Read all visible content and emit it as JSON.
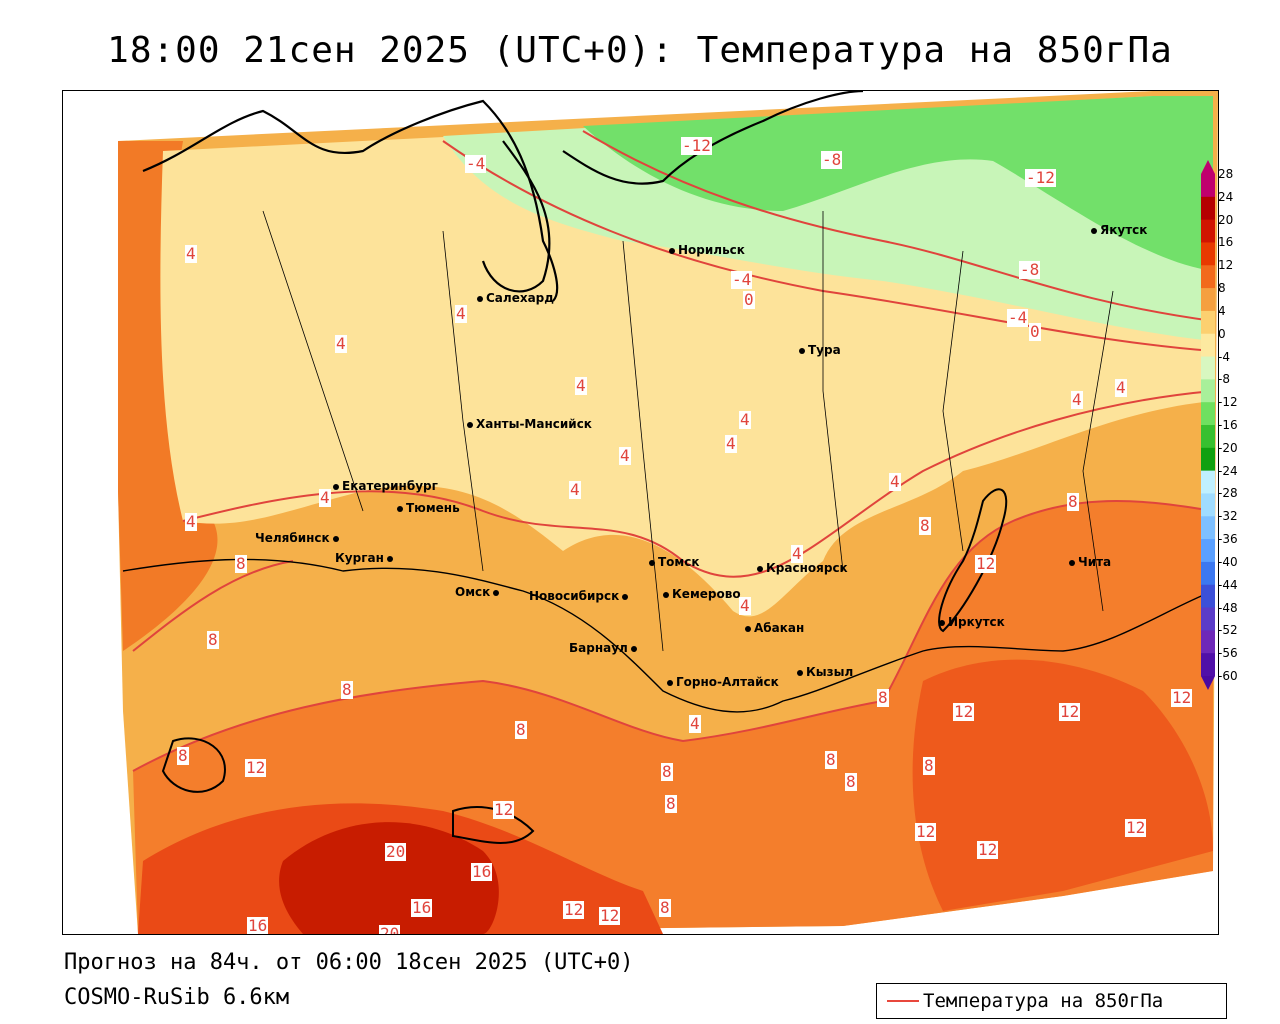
{
  "title": "18:00 21сен 2025 (UTC+0): Температура на 850гПа",
  "footer": {
    "forecast": "Прогноз на 84ч. от 06:00 18сен 2025 (UTC+0)",
    "model": "COSMO-RuSib 6.6км"
  },
  "legend": {
    "label": "Температура на 850гПа",
    "line_color": "#e8473c"
  },
  "color_scale": {
    "labels": [
      "28",
      "24",
      "20",
      "16",
      "12",
      "8",
      "4",
      "0",
      "-4",
      "-8",
      "-12",
      "-16",
      "-20",
      "-24",
      "-28",
      "-32",
      "-36",
      "-40",
      "-44",
      "-48",
      "-52",
      "-56",
      "-60"
    ],
    "colors": [
      "#c0006e",
      "#b50000",
      "#d01500",
      "#e83a00",
      "#f26a1c",
      "#f5a040",
      "#fcd070",
      "#fde9a0",
      "#d8f7c0",
      "#a8f09a",
      "#6fe060",
      "#38c030",
      "#10a010",
      "#c0f0ff",
      "#a0dcff",
      "#7ec0ff",
      "#5aa0ff",
      "#3c78f0",
      "#3c50d8",
      "#5a3cc8",
      "#6e28b8",
      "#5010a8",
      "#4a0aa0"
    ]
  },
  "cities": [
    {
      "name": "Норильск"
    },
    {
      "name": "Якутск"
    },
    {
      "name": "Салехард"
    },
    {
      "name": "Тура"
    },
    {
      "name": "Ханты-Мансийск"
    },
    {
      "name": "Екатеринбург"
    },
    {
      "name": "Тюмень"
    },
    {
      "name": "Челябинск"
    },
    {
      "name": "Курган"
    },
    {
      "name": "Омск"
    },
    {
      "name": "Новосибирск"
    },
    {
      "name": "Томск"
    },
    {
      "name": "Кемерово"
    },
    {
      "name": "Красноярск"
    },
    {
      "name": "Абакан"
    },
    {
      "name": "Барнаул"
    },
    {
      "name": "Горно-Алтайск"
    },
    {
      "name": "Кызыл"
    },
    {
      "name": "Иркутск"
    },
    {
      "name": "Чита"
    }
  ],
  "isotherm_labels": [
    "-12",
    "-8",
    "-12",
    "-4",
    "-4",
    "0",
    "-8",
    "-4",
    "0",
    "4",
    "4",
    "4",
    "4",
    "4",
    "4",
    "4",
    "4",
    "4",
    "4",
    "4",
    "4",
    "4",
    "4",
    "4",
    "4",
    "8",
    "8",
    "8",
    "8",
    "8",
    "8",
    "8",
    "8",
    "8",
    "8",
    "8",
    "8",
    "8",
    "8",
    "12",
    "12",
    "12",
    "12",
    "12",
    "12",
    "12",
    "12",
    "12",
    "12",
    "12",
    "20",
    "16",
    "16",
    "16",
    "20"
  ]
}
